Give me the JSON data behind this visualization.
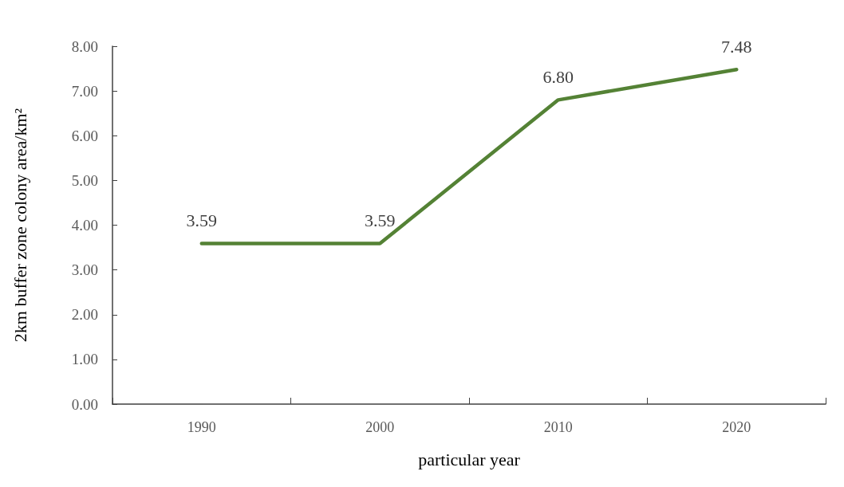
{
  "chart_data": {
    "type": "line",
    "xlabel": "particular year",
    "ylabel": "2km buffer zone colony area/km²",
    "categories": [
      "1990",
      "2000",
      "2010",
      "2020"
    ],
    "series": [
      {
        "color": "#548235",
        "values": [
          3.59,
          3.59,
          6.8,
          7.48
        ],
        "value_labels": [
          "3.59",
          "3.59",
          "6.80",
          "7.48"
        ]
      }
    ],
    "ylim": [
      0,
      8
    ],
    "yticks": [
      {
        "value": 0,
        "label": "0.00"
      },
      {
        "value": 1,
        "label": "1.00"
      },
      {
        "value": 2,
        "label": "2.00"
      },
      {
        "value": 3,
        "label": "3.00"
      },
      {
        "value": 4,
        "label": "4.00"
      },
      {
        "value": 5,
        "label": "5.00"
      },
      {
        "value": 6,
        "label": "6.00"
      },
      {
        "value": 7,
        "label": "7.00"
      },
      {
        "value": 8,
        "label": "8.00"
      }
    ],
    "grid": false,
    "marker": "none",
    "line_style": "solid"
  }
}
